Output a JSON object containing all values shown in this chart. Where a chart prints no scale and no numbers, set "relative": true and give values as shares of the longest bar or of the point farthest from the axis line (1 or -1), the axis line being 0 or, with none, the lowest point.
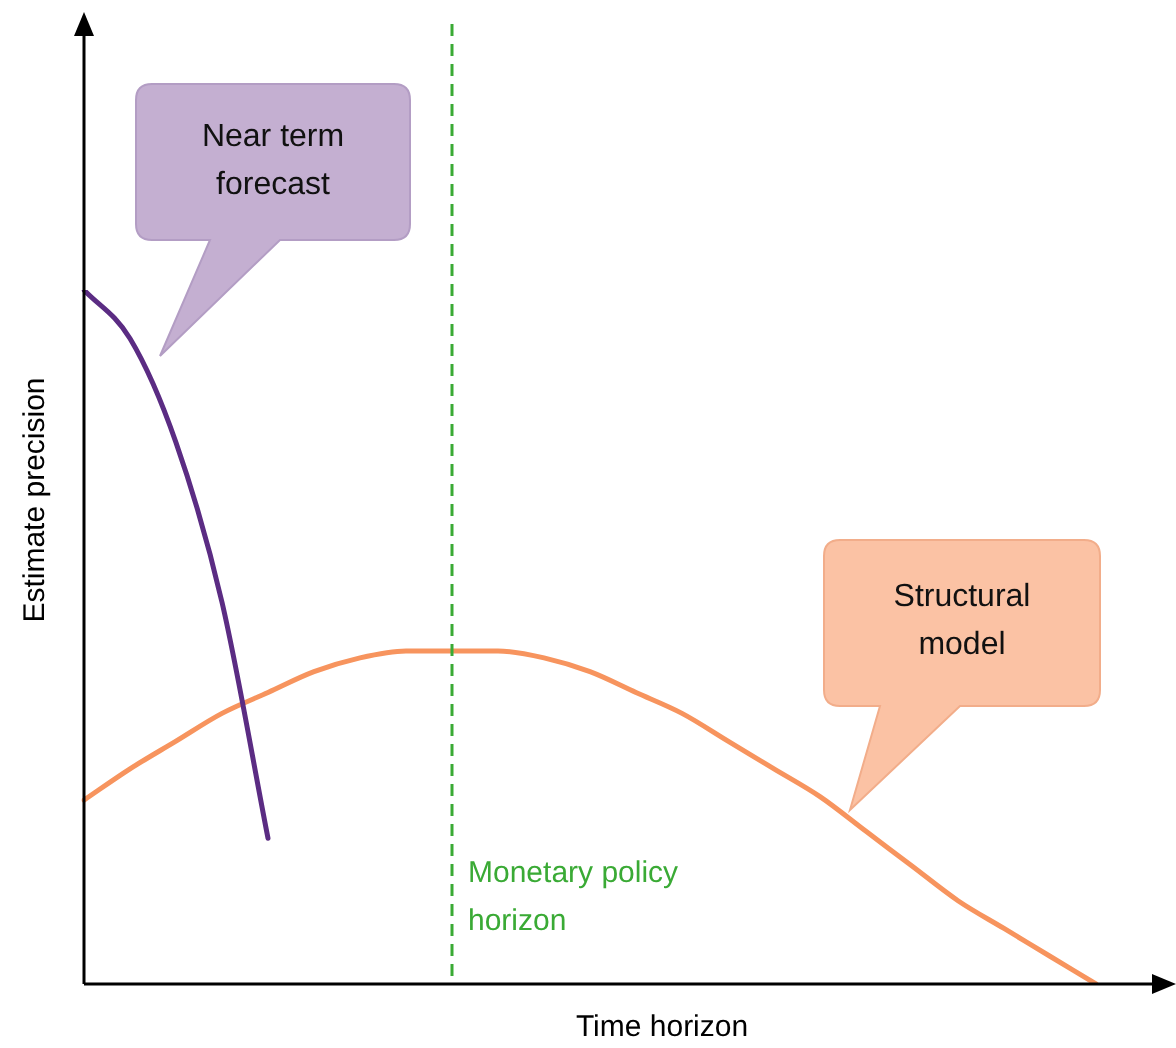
{
  "chart_data": {
    "type": "line",
    "relative": true,
    "xlabel": "Time horizon",
    "ylabel": "Estimate precision",
    "categories": [
      null,
      null,
      null,
      null,
      null,
      null,
      null,
      null,
      null,
      null,
      null,
      null,
      null,
      null,
      null,
      null,
      null,
      null,
      null,
      null,
      null,
      null,
      null,
      null
    ],
    "series": [
      {
        "color": "#5b2c83",
        "values": [
          1,
          0.93,
          0.78,
          0.55,
          0.21,
          null,
          null,
          null,
          null,
          null,
          null,
          null,
          null,
          null,
          null,
          null,
          null,
          null,
          null,
          null,
          null,
          null,
          null,
          null
        ]
      },
      {
        "color": "#f7945e",
        "values": [
          0.265,
          0.31,
          0.35,
          0.39,
          0.42,
          0.45,
          0.47,
          0.48,
          0.48,
          0.48,
          0.47,
          0.45,
          0.42,
          0.39,
          0.35,
          0.31,
          0.27,
          0.22,
          0.17,
          0.12,
          0.08,
          0.04,
          0,
          null
        ]
      }
    ],
    "annotations": [
      "Near term forecast",
      "Structural model",
      "Monetary policy horizon"
    ],
    "grid": false,
    "legend": false,
    "marker": "none",
    "line_style": "solid"
  }
}
